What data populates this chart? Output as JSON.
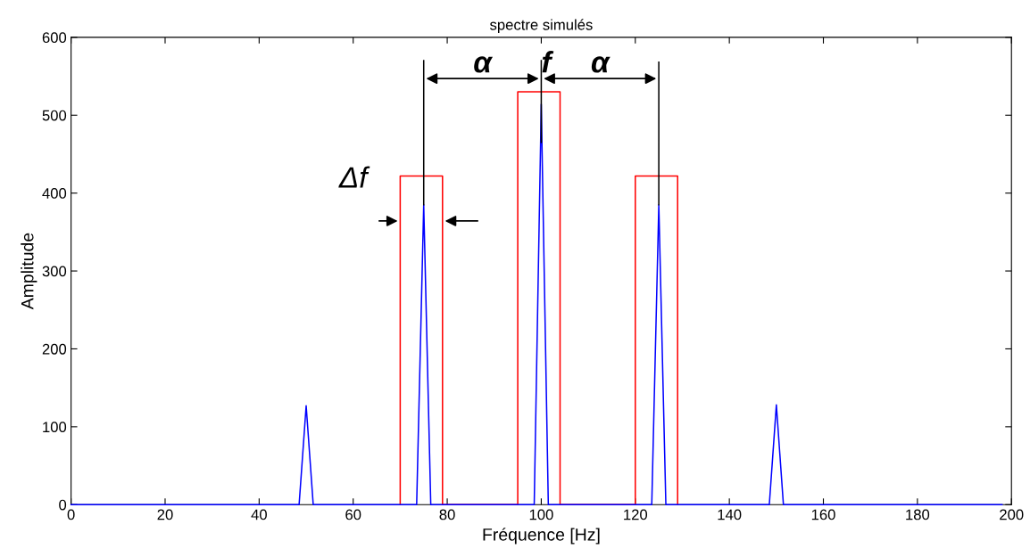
{
  "chart_data": {
    "type": "line",
    "title": "spectre simulés",
    "xlabel": "Fréquence [Hz]",
    "ylabel": "Amplitude",
    "xlim": [
      0,
      200
    ],
    "ylim": [
      0,
      600
    ],
    "xticks": [
      0,
      20,
      40,
      60,
      80,
      100,
      120,
      140,
      160,
      180,
      200
    ],
    "yticks": [
      0,
      100,
      200,
      300,
      400,
      500,
      600
    ],
    "grid": false,
    "marker": "none",
    "line_style": "solid",
    "series": [
      {
        "color": "#ff0000",
        "x": [
          70,
          70,
          79,
          79,
          95,
          95,
          104,
          104,
          120,
          120,
          129,
          129
        ],
        "values": [
          0,
          422,
          422,
          0,
          0,
          530,
          530,
          0,
          0,
          422,
          422,
          0
        ]
      },
      {
        "color": "#0000ff",
        "x": [
          0,
          48.5,
          50,
          51.5,
          73.5,
          75,
          76.5,
          98.5,
          100,
          101.5,
          123.5,
          125,
          126.5,
          148.5,
          150,
          151.5,
          198
        ],
        "values": [
          0,
          0,
          127,
          0,
          0,
          385,
          0,
          0,
          514,
          0,
          0,
          385,
          0,
          0,
          128,
          0,
          0
        ]
      },
      {
        "color": "#000000",
        "x": [
          75,
          75,
          null,
          100,
          100,
          null,
          125,
          125
        ],
        "values": [
          385,
          570,
          null,
          465,
          570,
          null,
          385,
          568
        ]
      }
    ],
    "annotations": [
      "Δf",
      {
        "text": "α",
        "x": 87.5,
        "y": 547
      },
      {
        "text": "f",
        "x": 100,
        "y": 547
      },
      {
        "text": "α",
        "x": 112.5,
        "y": 547
      }
    ]
  }
}
